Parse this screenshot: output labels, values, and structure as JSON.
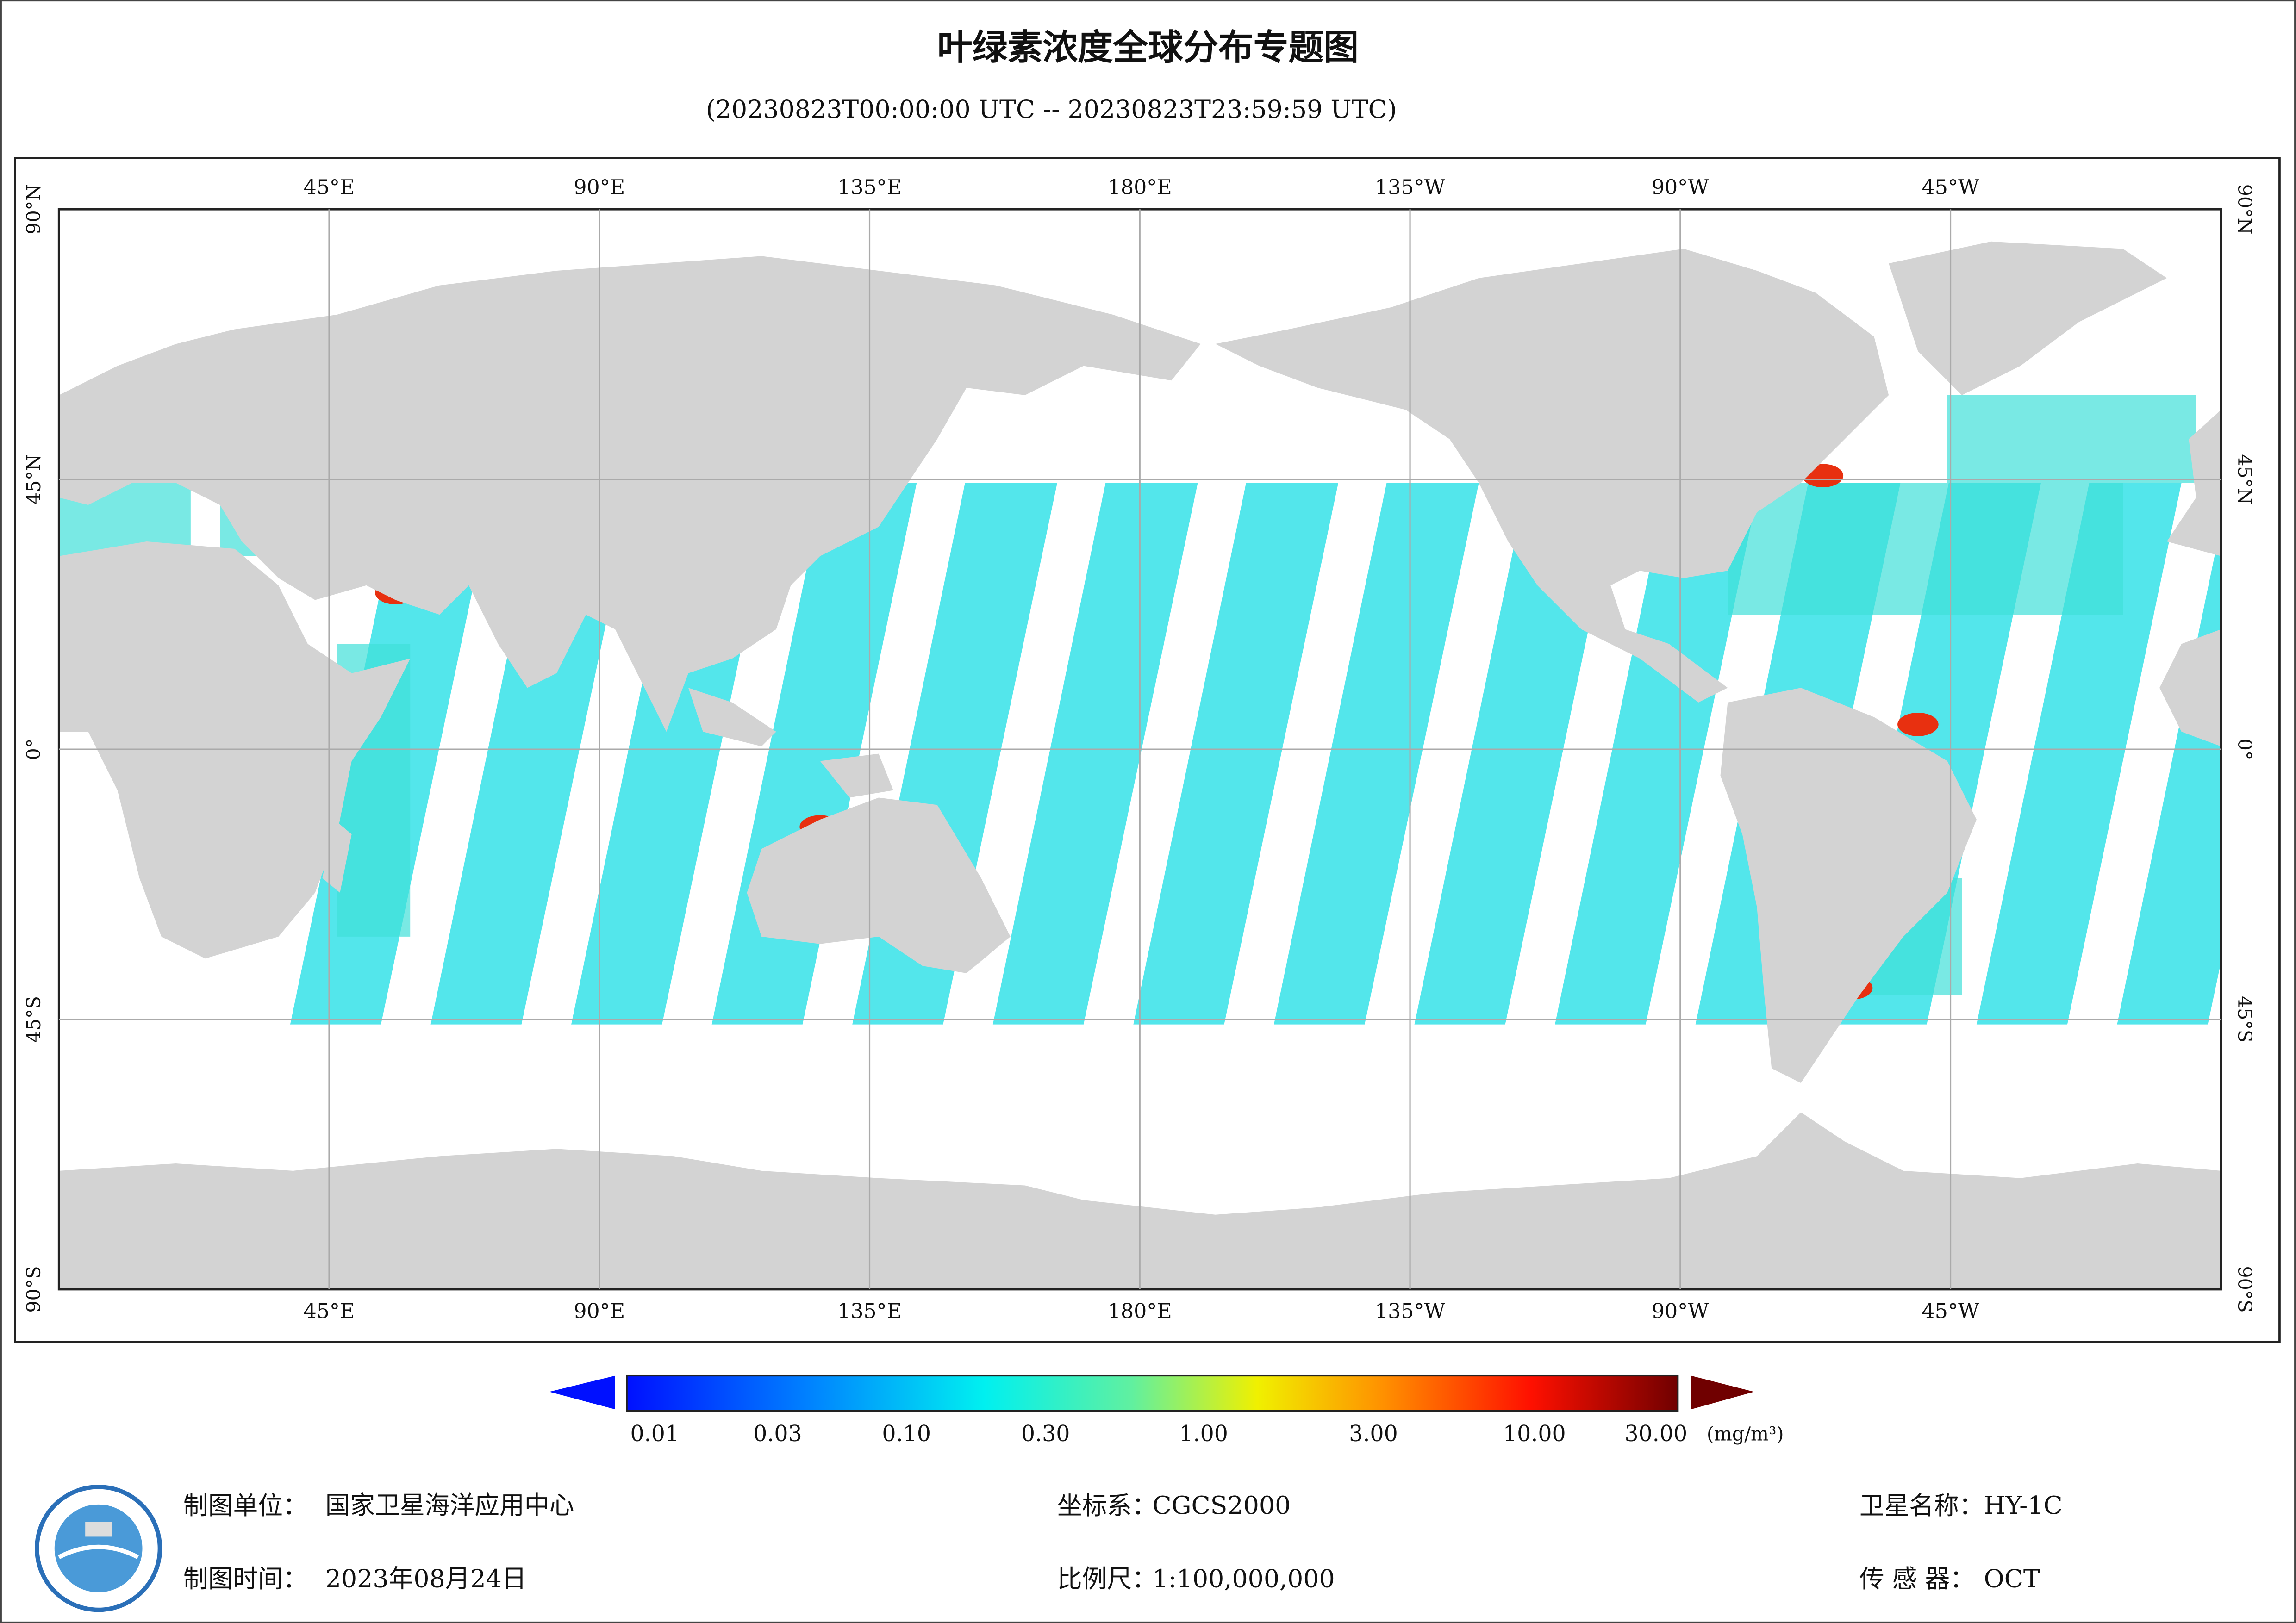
{
  "header": {
    "title": "叶绿素浓度全球分布专题图",
    "subtitle": "(20230823T00:00:00 UTC -- 20230823T23:59:59 UTC)"
  },
  "map": {
    "longitude_labels": [
      "45°E",
      "90°E",
      "135°E",
      "180°E",
      "135°W",
      "90°W",
      "45°W"
    ],
    "latitude_labels": [
      "90°N",
      "45°N",
      "0°",
      "45°S",
      "90°S"
    ]
  },
  "colorbar": {
    "labels": [
      "0.01",
      "0.03",
      "0.10",
      "0.30",
      "1.00",
      "3.00",
      "10.00",
      "30.00"
    ],
    "unit": "(mg/m³)"
  },
  "footer": {
    "items": [
      {
        "label": "制图单位：",
        "value": "国家卫星海洋应用中心"
      },
      {
        "label": "制图时间：",
        "value": "2023年08月24日"
      },
      {
        "label": "坐标系：",
        "value": "CGCS2000"
      },
      {
        "label": "比例尺：",
        "value": "1:100,000,000"
      },
      {
        "label": "卫星名称：",
        "value": "HY-1C"
      },
      {
        "label": "传 感 器：",
        "value": "OCT"
      }
    ]
  }
}
